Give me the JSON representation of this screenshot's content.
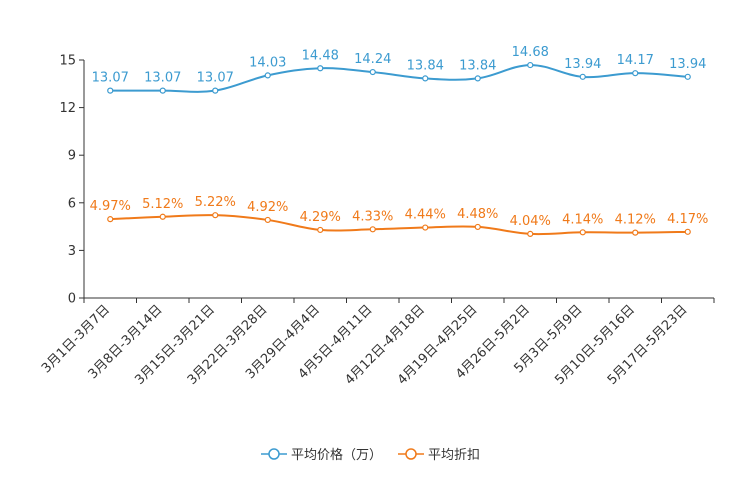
{
  "chart_data": {
    "type": "line",
    "title": "",
    "categories": [
      "3月1日-3月7日",
      "3月8日-3月14日",
      "3月15日-3月21日",
      "3月22日-3月28日",
      "3月29日-4月4日",
      "4月5日-4月11日",
      "4月12日-4月18日",
      "4月19日-4月25日",
      "4月26日-5月2日",
      "5月3日-5月9日",
      "5月10日-5月16日",
      "5月17日-5月23日"
    ],
    "yticks": [
      "0",
      "3",
      "6",
      "9",
      "12",
      "15"
    ],
    "ylim": [
      0,
      15
    ],
    "grid": false,
    "legend_position": "bottom",
    "series": [
      {
        "name": "平均价格（万）",
        "color": "#3c9bd0",
        "values": [
          13.07,
          13.07,
          13.07,
          14.03,
          14.48,
          14.24,
          13.84,
          13.84,
          14.68,
          13.94,
          14.17,
          13.94
        ],
        "labels": [
          "13.07",
          "13.07",
          "13.07",
          "14.03",
          "14.48",
          "14.24",
          "13.84",
          "13.84",
          "14.68",
          "13.94",
          "14.17",
          "13.94"
        ]
      },
      {
        "name": "平均折扣",
        "color": "#f07a1a",
        "values": [
          4.97,
          5.12,
          5.22,
          4.92,
          4.29,
          4.33,
          4.44,
          4.48,
          4.04,
          4.14,
          4.12,
          4.17
        ],
        "labels": [
          "4.97%",
          "5.12%",
          "5.22%",
          "4.92%",
          "4.29%",
          "4.33%",
          "4.44%",
          "4.48%",
          "4.04%",
          "4.14%",
          "4.12%",
          "4.17%"
        ]
      }
    ]
  }
}
